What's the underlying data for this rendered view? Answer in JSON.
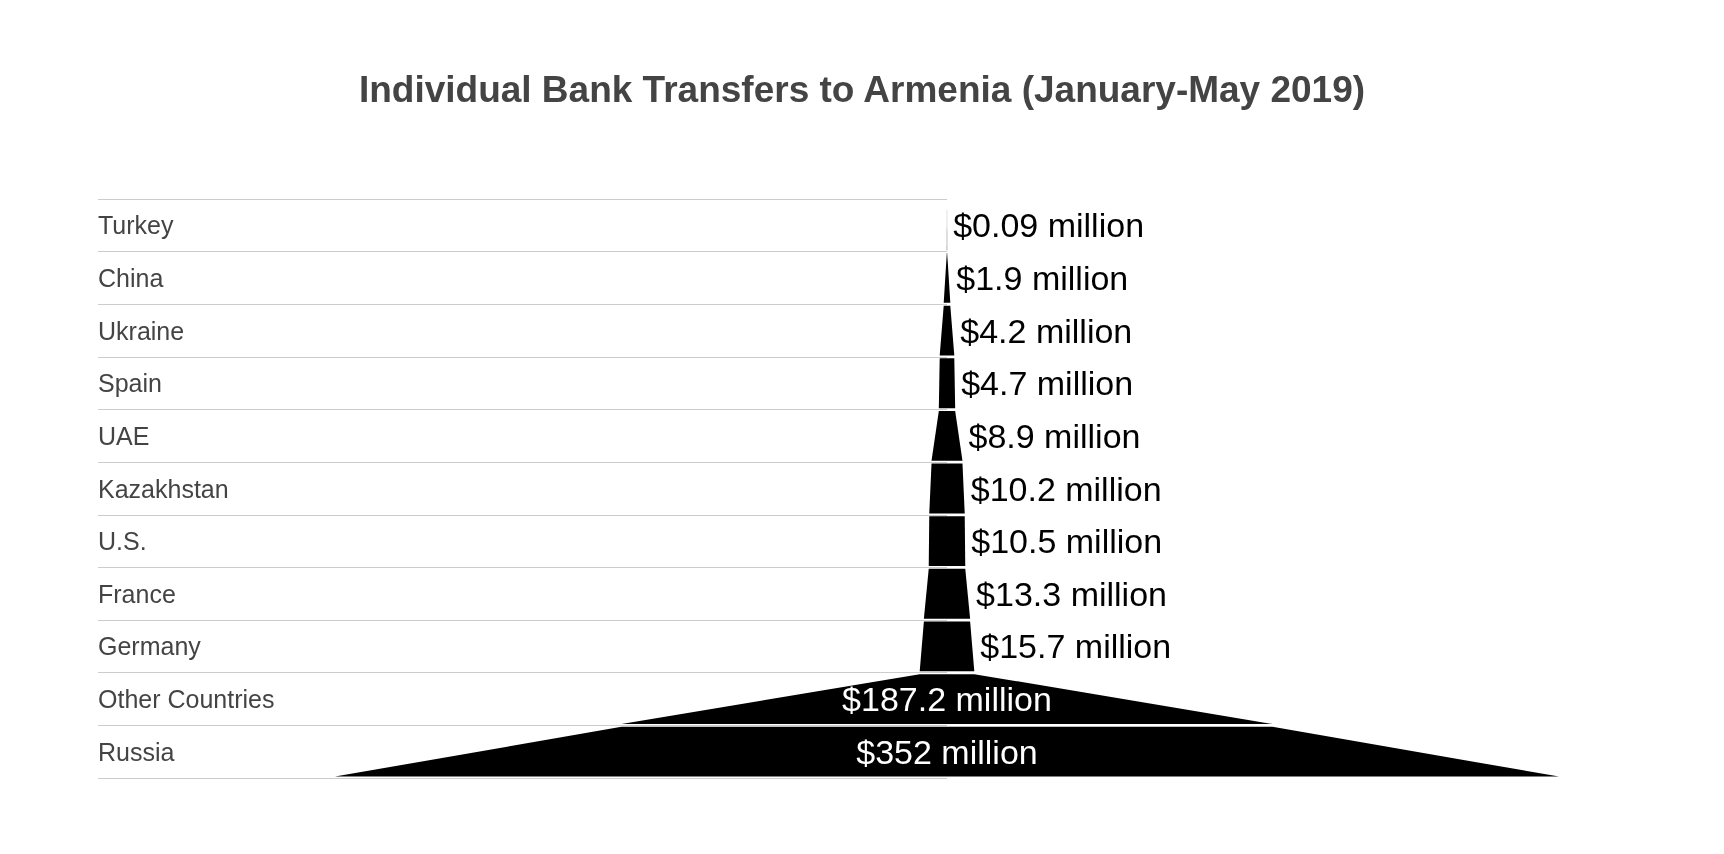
{
  "chart_data": {
    "type": "other",
    "title": "Individual Bank Transfers to Armenia (January-May 2019)",
    "categories": [
      "Turkey",
      "China",
      "Ukraine",
      "Spain",
      "UAE",
      "Kazakhstan",
      "U.S.",
      "France",
      "Germany",
      "Other Countries",
      "Russia"
    ],
    "values": [
      0.09,
      1.9,
      4.2,
      4.7,
      8.9,
      10.2,
      10.5,
      13.3,
      15.7,
      187.2,
      352
    ],
    "value_labels": [
      "$0.09 million",
      "$1.9 million",
      "$4.2 million",
      "$4.7 million",
      "$8.9 million",
      "$10.2 million",
      "$10.5 million",
      "$13.3 million",
      "$15.7 million",
      "$187.2 million",
      "$352 million"
    ],
    "color": "#000000"
  }
}
